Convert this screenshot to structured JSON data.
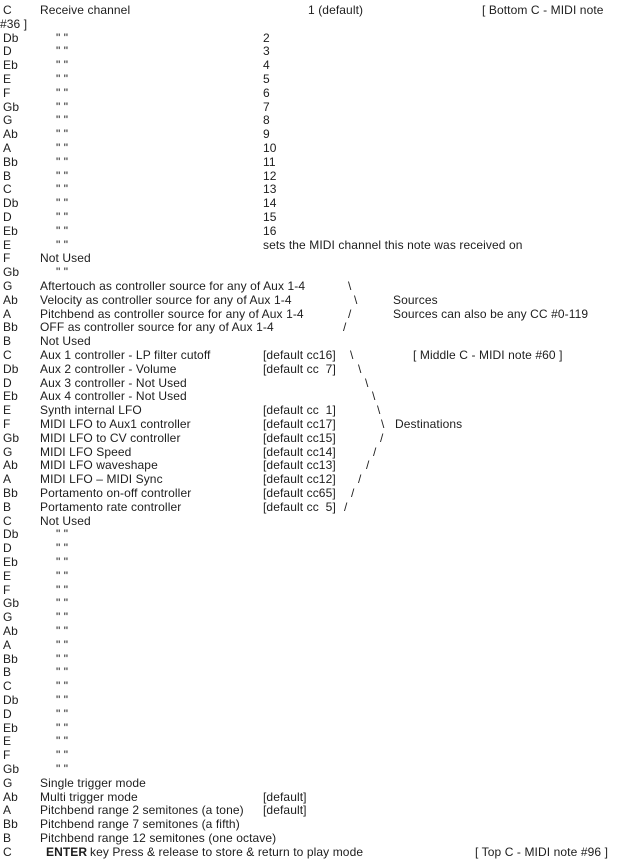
{
  "document": {
    "description_values": {
      "text_color": "#1d1d1d",
      "background": "#ffffff"
    },
    "rows": [
      {
        "note": "C",
        "spans": [
          [
            "Receive channel",
            40
          ],
          [
            "1 (default)",
            308
          ],
          [
            "[ Bottom C - MIDI note",
            482
          ]
        ]
      },
      {
        "note": "",
        "spans": [
          [
            "#36 ]",
            0
          ]
        ]
      },
      {
        "note": "Db",
        "spans": [
          [
            "\" \"",
            56
          ],
          [
            "2",
            263
          ]
        ]
      },
      {
        "note": "D",
        "spans": [
          [
            "\" \"",
            56
          ],
          [
            "3",
            263
          ]
        ]
      },
      {
        "note": "Eb",
        "spans": [
          [
            "\" \"",
            56
          ],
          [
            "4",
            263
          ]
        ]
      },
      {
        "note": "E",
        "spans": [
          [
            "\" \"",
            56
          ],
          [
            "5",
            263
          ]
        ]
      },
      {
        "note": "F",
        "spans": [
          [
            "\" \"",
            56
          ],
          [
            "6",
            263
          ]
        ]
      },
      {
        "note": "Gb",
        "spans": [
          [
            "\" \"",
            56
          ],
          [
            "7",
            263
          ]
        ]
      },
      {
        "note": "G",
        "spans": [
          [
            "\" \"",
            56
          ],
          [
            "8",
            263
          ]
        ]
      },
      {
        "note": "Ab",
        "spans": [
          [
            "\" \"",
            56
          ],
          [
            "9",
            263
          ]
        ]
      },
      {
        "note": "A",
        "spans": [
          [
            "\" \"",
            56
          ],
          [
            "10",
            263
          ]
        ]
      },
      {
        "note": "Bb",
        "spans": [
          [
            "\" \"",
            56
          ],
          [
            "11",
            263
          ]
        ]
      },
      {
        "note": "B",
        "spans": [
          [
            "\" \"",
            56
          ],
          [
            "12",
            263
          ]
        ]
      },
      {
        "note": "C",
        "spans": [
          [
            "\" \"",
            56
          ],
          [
            "13",
            263
          ]
        ]
      },
      {
        "note": "Db",
        "spans": [
          [
            "\" \"",
            56
          ],
          [
            "14",
            263
          ]
        ]
      },
      {
        "note": "D",
        "spans": [
          [
            "\" \"",
            56
          ],
          [
            "15",
            263
          ]
        ]
      },
      {
        "note": "Eb",
        "spans": [
          [
            "\" \"",
            56
          ],
          [
            "16",
            263
          ]
        ]
      },
      {
        "note": "E",
        "spans": [
          [
            "\" \"",
            56
          ],
          [
            "sets the MIDI channel this note was received on",
            263
          ]
        ]
      },
      {
        "note": "F",
        "spans": [
          [
            "Not Used",
            40
          ]
        ]
      },
      {
        "note": "Gb",
        "spans": [
          [
            "\" \"",
            56
          ]
        ]
      },
      {
        "note": "G",
        "spans": [
          [
            "Aftertouch as controller source for any of Aux 1-4",
            40
          ],
          [
            "\\",
            348
          ]
        ]
      },
      {
        "note": "Ab",
        "spans": [
          [
            "Velocity as controller source for any of Aux 1-4",
            40
          ],
          [
            "\\",
            354
          ],
          [
            "Sources",
            393
          ]
        ]
      },
      {
        "note": "A",
        "spans": [
          [
            "Pitchbend as controller source for any of Aux 1-4",
            40
          ],
          [
            "/",
            348
          ],
          [
            "Sources can also be any CC #0-119",
            393
          ]
        ]
      },
      {
        "note": "Bb",
        "spans": [
          [
            "OFF as controller source for any of Aux 1-4",
            40
          ],
          [
            "/",
            343
          ]
        ]
      },
      {
        "note": "B",
        "spans": [
          [
            "Not Used",
            40
          ]
        ]
      },
      {
        "note": "C",
        "spans": [
          [
            "Aux 1 controller - LP filter cutoff",
            40
          ],
          [
            "[default cc16]",
            263
          ],
          [
            "\\",
            350
          ],
          [
            "[ Middle C - MIDI note #60 ]",
            413
          ]
        ]
      },
      {
        "note": "Db",
        "spans": [
          [
            "Aux 2 controller - Volume",
            40
          ],
          [
            "[default cc  7]",
            263
          ],
          [
            "\\",
            358
          ]
        ]
      },
      {
        "note": "D",
        "spans": [
          [
            "Aux 3 controller - Not Used",
            40
          ],
          [
            "\\",
            365
          ]
        ]
      },
      {
        "note": "Eb",
        "spans": [
          [
            "Aux 4 controller - Not Used",
            40
          ],
          [
            "\\",
            372
          ]
        ]
      },
      {
        "note": "E",
        "spans": [
          [
            "Synth internal LFO",
            40
          ],
          [
            "[default cc  1]",
            263
          ],
          [
            "\\",
            377
          ]
        ]
      },
      {
        "note": "F",
        "spans": [
          [
            "MIDI LFO to Aux1 controller",
            40
          ],
          [
            "[default cc17]",
            263
          ],
          [
            "\\",
            381
          ],
          [
            "Destinations",
            395
          ]
        ]
      },
      {
        "note": "Gb",
        "spans": [
          [
            "MIDI LFO to CV controller",
            40
          ],
          [
            "[default cc15]",
            263
          ],
          [
            "/",
            380
          ]
        ]
      },
      {
        "note": "G",
        "spans": [
          [
            "MIDI LFO Speed",
            40
          ],
          [
            "[default cc14]",
            263
          ],
          [
            "/",
            373
          ]
        ]
      },
      {
        "note": "Ab",
        "spans": [
          [
            "MIDI LFO waveshape",
            40
          ],
          [
            "[default cc13]",
            263
          ],
          [
            "/",
            366
          ]
        ]
      },
      {
        "note": "A",
        "spans": [
          [
            "MIDI LFO – MIDI Sync",
            40
          ],
          [
            "[default cc12]",
            263
          ],
          [
            "/",
            358
          ]
        ]
      },
      {
        "note": "Bb",
        "spans": [
          [
            "Portamento on-off controller",
            40
          ],
          [
            "[default cc65]",
            263
          ],
          [
            "/",
            351
          ]
        ]
      },
      {
        "note": "B",
        "spans": [
          [
            "Portamento rate controller",
            40
          ],
          [
            "[default cc  5]",
            263
          ],
          [
            "/",
            344
          ]
        ]
      },
      {
        "note": "C",
        "spans": [
          [
            "Not Used",
            40
          ]
        ]
      },
      {
        "note": "Db",
        "spans": [
          [
            "\" \"",
            56
          ]
        ]
      },
      {
        "note": "D",
        "spans": [
          [
            "\" \"",
            56
          ]
        ]
      },
      {
        "note": "Eb",
        "spans": [
          [
            "\" \"",
            56
          ]
        ]
      },
      {
        "note": "E",
        "spans": [
          [
            "\" \"",
            56
          ]
        ]
      },
      {
        "note": "F",
        "spans": [
          [
            "\" \"",
            56
          ]
        ]
      },
      {
        "note": "Gb",
        "spans": [
          [
            "\" \"",
            56
          ]
        ]
      },
      {
        "note": "G",
        "spans": [
          [
            "\" \"",
            56
          ]
        ]
      },
      {
        "note": "Ab",
        "spans": [
          [
            "\" \"",
            56
          ]
        ]
      },
      {
        "note": "A",
        "spans": [
          [
            "\" \"",
            56
          ]
        ]
      },
      {
        "note": "Bb",
        "spans": [
          [
            "\" \"",
            56
          ]
        ]
      },
      {
        "note": "B",
        "spans": [
          [
            "\" \"",
            56
          ]
        ]
      },
      {
        "note": "C",
        "spans": [
          [
            "\" \"",
            56
          ]
        ]
      },
      {
        "note": "Db",
        "spans": [
          [
            "\" \"",
            56
          ]
        ]
      },
      {
        "note": "D",
        "spans": [
          [
            "\" \"",
            56
          ]
        ]
      },
      {
        "note": "Eb",
        "spans": [
          [
            "\" \"",
            56
          ]
        ]
      },
      {
        "note": "E",
        "spans": [
          [
            "\" \"",
            56
          ]
        ]
      },
      {
        "note": "F",
        "spans": [
          [
            "\" \"",
            56
          ]
        ]
      },
      {
        "note": "Gb",
        "spans": [
          [
            "\" \"",
            56
          ]
        ]
      },
      {
        "note": "G",
        "spans": [
          [
            "Single trigger mode",
            40
          ]
        ]
      },
      {
        "note": "Ab",
        "spans": [
          [
            "Multi trigger mode",
            40
          ],
          [
            "[default]",
            263
          ]
        ]
      },
      {
        "note": "A",
        "spans": [
          [
            "Pitchbend range 2 semitones (a tone)",
            40
          ],
          [
            "[default]",
            263
          ]
        ]
      },
      {
        "note": "Bb",
        "spans": [
          [
            "Pitchbend range 7 semitones (a fifth)",
            40
          ]
        ]
      },
      {
        "note": "B",
        "spans": [
          [
            "Pitchbend range 12 semitones (one octave)",
            40
          ]
        ]
      },
      {
        "note": "C",
        "spans": [
          [
            "ENTER",
            46,
            1
          ],
          [
            "key Press & release to store & return to play mode",
            90
          ],
          [
            "[ Top C - MIDI note #96 ]",
            475
          ]
        ]
      }
    ]
  }
}
